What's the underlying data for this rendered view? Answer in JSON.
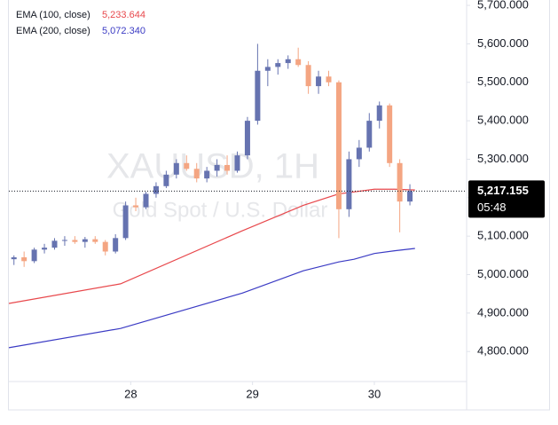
{
  "chart_data": {
    "type": "candlestick",
    "watermark": {
      "title": "XAUUSD, 1H",
      "subtitle": "Gold Spot / U.S. Dollar"
    },
    "xlim": [
      -24,
      66
    ],
    "xticks": [
      {
        "value": 0,
        "label": "28"
      },
      {
        "value": 24,
        "label": "29"
      },
      {
        "value": 48,
        "label": "30"
      }
    ],
    "ylim": [
      4722,
      5714
    ],
    "yticks": [
      {
        "value": 4800,
        "label": "4,800.000"
      },
      {
        "value": 4900,
        "label": "4,900.000"
      },
      {
        "value": 5000,
        "label": "5,000.000"
      },
      {
        "value": 5100,
        "label": "5,100.000"
      },
      {
        "value": 5200,
        "label": "5,200.000"
      },
      {
        "value": 5300,
        "label": "5,300.000"
      },
      {
        "value": 5400,
        "label": "5,400.000"
      },
      {
        "value": 5500,
        "label": "5,500.000"
      },
      {
        "value": 5600,
        "label": "5,600.000"
      },
      {
        "value": 5700,
        "label": "5,700.000"
      }
    ],
    "up_color": "#6673b0",
    "down_color": "#f4a582",
    "candles": {
      "x": [
        -23,
        -21,
        -19,
        -17,
        -15,
        -13,
        -11,
        -9,
        -7,
        -5,
        -3,
        -1,
        1,
        3,
        5,
        7,
        9,
        11,
        13,
        15,
        17,
        19,
        21,
        23,
        25,
        27,
        29,
        31,
        33,
        35,
        37,
        39,
        41,
        43,
        45,
        47,
        49,
        51,
        53,
        55
      ],
      "open": [
        5040,
        5045,
        5035,
        5065,
        5070,
        5088,
        5090,
        5085,
        5092,
        5085,
        5060,
        5095,
        5180,
        5175,
        5210,
        5230,
        5260,
        5290,
        5275,
        5250,
        5270,
        5285,
        5270,
        5310,
        5400,
        5530,
        5540,
        5550,
        5560,
        5545,
        5490,
        5515,
        5500,
        5170,
        5300,
        5330,
        5400,
        5440,
        5290,
        5190
      ],
      "high": [
        5050,
        5060,
        5070,
        5080,
        5095,
        5100,
        5100,
        5098,
        5100,
        5090,
        5105,
        5190,
        5200,
        5215,
        5240,
        5270,
        5300,
        5310,
        5290,
        5280,
        5300,
        5310,
        5320,
        5410,
        5600,
        5560,
        5560,
        5570,
        5590,
        5555,
        5530,
        5530,
        5505,
        5320,
        5350,
        5420,
        5450,
        5445,
        5300,
        5235
      ],
      "low": [
        5025,
        5020,
        5030,
        5055,
        5065,
        5075,
        5080,
        5070,
        5080,
        5050,
        5055,
        5090,
        5165,
        5170,
        5200,
        5225,
        5250,
        5270,
        5240,
        5240,
        5255,
        5260,
        5265,
        5300,
        5390,
        5490,
        5520,
        5535,
        5540,
        5470,
        5470,
        5490,
        5095,
        5150,
        5280,
        5320,
        5380,
        5280,
        5110,
        5180
      ],
      "close": [
        5045,
        5035,
        5065,
        5070,
        5088,
        5090,
        5085,
        5092,
        5085,
        5060,
        5095,
        5180,
        5175,
        5210,
        5230,
        5260,
        5290,
        5275,
        5250,
        5270,
        5285,
        5270,
        5310,
        5400,
        5530,
        5540,
        5550,
        5560,
        5545,
        5490,
        5515,
        5500,
        5170,
        5300,
        5330,
        5400,
        5440,
        5290,
        5190,
        5217.155
      ]
    },
    "series": [
      {
        "name": "EMA (100, close)",
        "color": "#e8484c",
        "legend_value": {
          "value": 5233.644,
          "label": "5,233.644"
        },
        "x": [
          -24,
          -2,
          22,
          34,
          41,
          44,
          48,
          52,
          56
        ],
        "values": [
          4925,
          4976,
          5114,
          5180,
          5210,
          5215,
          5222,
          5222,
          5220
        ]
      },
      {
        "name": "EMA (200, close)",
        "color": "#3b3bc4",
        "legend_value": {
          "value": 5072.34,
          "label": "5,072.340"
        },
        "x": [
          -24,
          -2,
          22,
          34,
          41,
          44,
          48,
          52,
          56
        ],
        "values": [
          4810,
          4860,
          4952,
          5010,
          5033,
          5040,
          5055,
          5062,
          5068
        ]
      }
    ],
    "last_price": {
      "value": 5217.155,
      "label": "5,217.155"
    },
    "countdown": "05:48"
  }
}
